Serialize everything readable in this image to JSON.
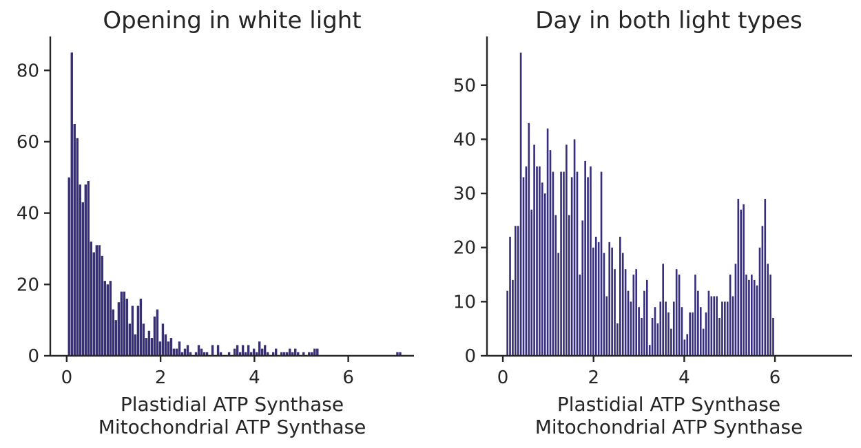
{
  "colors": {
    "bar": "#372f7d",
    "axis": "#262626"
  },
  "chart_data": [
    {
      "type": "bar",
      "title": "Opening in white light",
      "xlabel": "Plastidial ATP Synthase",
      "xlabel2": "Mitochondrial ATP Synthase",
      "xlim": [
        -0.35,
        7.4
      ],
      "ylim": [
        0,
        89.5
      ],
      "xticks": [
        0,
        2,
        4,
        6
      ],
      "yticks": [
        0,
        20,
        40,
        60,
        80
      ],
      "bin_width": 0.05,
      "x_start": 0.05,
      "x_step": 0.0588,
      "values": [
        50,
        85,
        65,
        61,
        48,
        43,
        48,
        49,
        32,
        29,
        31,
        31,
        28,
        21,
        20,
        21,
        13,
        10,
        15,
        18,
        18,
        16,
        9,
        14,
        6,
        14,
        16,
        9,
        5,
        7,
        5,
        11,
        13,
        4,
        9,
        6,
        4,
        5,
        2,
        2,
        4,
        1,
        2,
        3,
        1,
        0,
        1,
        3,
        2,
        1,
        1,
        0,
        3,
        0,
        3,
        1,
        0,
        0,
        1,
        0,
        2,
        3,
        1,
        3,
        1,
        3,
        1,
        2,
        1,
        4,
        2,
        3,
        1,
        0,
        1,
        2,
        0,
        1,
        1,
        1,
        2,
        1,
        2,
        1,
        0,
        1,
        0,
        1,
        1,
        2,
        2,
        0,
        0,
        0,
        0,
        0,
        0,
        0,
        0,
        0,
        0,
        0,
        0,
        0,
        0,
        0,
        0,
        0,
        0,
        0,
        0,
        0,
        0,
        0,
        0,
        0,
        0,
        0,
        0,
        1,
        1
      ]
    },
    {
      "type": "bar",
      "title": "Day in both light types",
      "xlabel": "Plastidial ATP Synthase",
      "xlabel2": "Mitochondrial ATP Synthase",
      "xlim": [
        -0.35,
        7.7
      ],
      "ylim": [
        0,
        59
      ],
      "xticks": [
        0,
        2,
        4,
        6
      ],
      "yticks": [
        0,
        10,
        20,
        30,
        40,
        50
      ],
      "bin_width": 0.04,
      "x_start": 0.1,
      "x_step": 0.0592,
      "values": [
        12,
        22,
        14,
        24,
        24,
        56,
        33,
        35,
        43,
        27,
        39,
        35,
        35,
        32,
        30,
        42,
        38,
        34,
        26,
        19,
        34,
        34,
        39,
        26,
        33,
        40,
        34,
        15,
        25,
        36,
        33,
        35,
        20,
        22,
        21,
        34,
        19,
        11,
        21,
        20,
        16,
        6,
        22,
        19,
        16,
        12,
        10,
        15,
        16,
        9,
        7,
        12,
        14,
        2,
        7,
        9,
        6,
        10,
        17,
        10,
        8,
        5,
        10,
        16,
        15,
        9,
        3,
        4,
        8,
        8,
        15,
        12,
        9,
        5,
        8,
        12,
        11,
        11,
        11,
        7,
        10,
        10,
        10,
        15,
        11,
        17,
        29,
        27,
        28,
        15,
        14,
        15,
        14,
        13,
        20,
        24,
        29,
        17,
        15,
        7
      ]
    }
  ]
}
